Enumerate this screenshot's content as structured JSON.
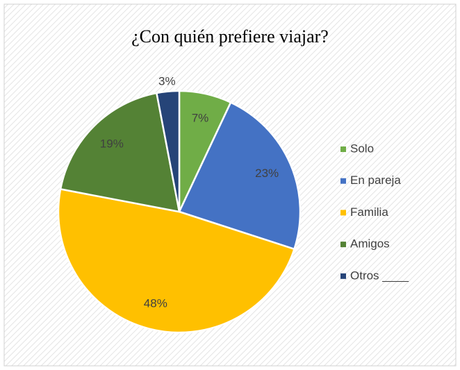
{
  "chart_data": {
    "type": "pie",
    "title": "¿Con quién prefiere viajar?",
    "categories": [
      "Solo",
      "En pareja",
      "Familia",
      "Amigos",
      "Otros ____"
    ],
    "values": [
      7,
      23,
      48,
      19,
      3
    ],
    "value_labels": [
      "7%",
      "23%",
      "48%",
      "19%",
      "3%"
    ],
    "colors": [
      "#70ad47",
      "#4472c4",
      "#ffc000",
      "#548235",
      "#264478"
    ],
    "legend": "right"
  }
}
